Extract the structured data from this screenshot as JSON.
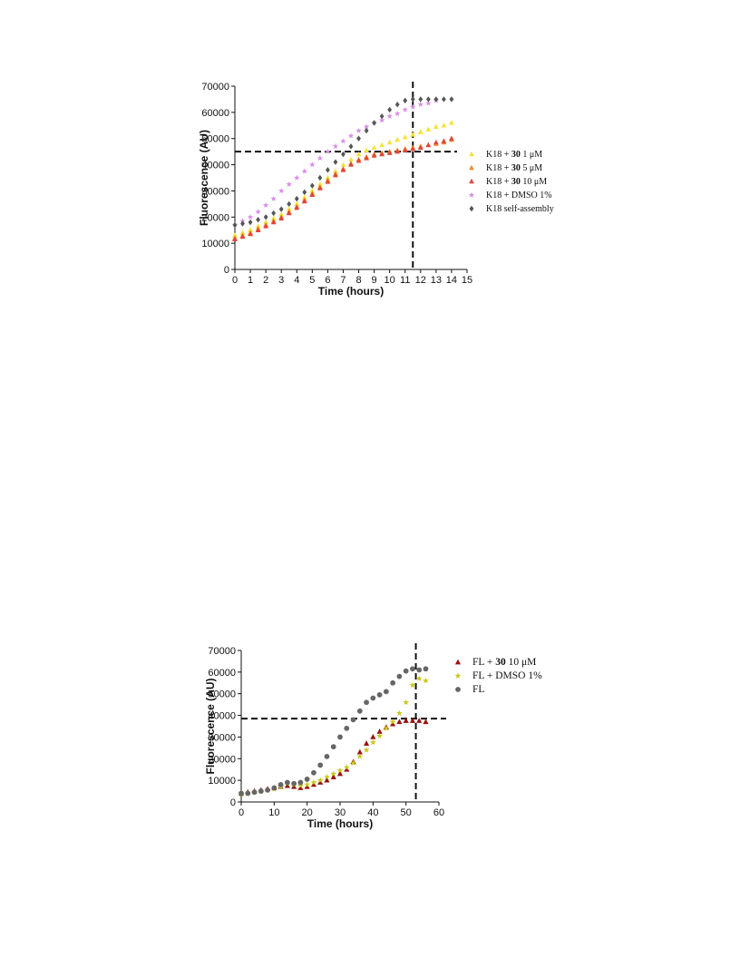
{
  "chart_data": [
    {
      "type": "scatter",
      "xlabel": "Time (hours)",
      "ylabel": "Fluorescence (AU)",
      "xlim": [
        0,
        15
      ],
      "ylim": [
        0,
        70000
      ],
      "xticks": [
        "0",
        "1",
        "2",
        "3",
        "4",
        "5",
        "6",
        "7",
        "8",
        "9",
        "10",
        "11",
        "12",
        "13",
        "14",
        "15"
      ],
      "yticks": [
        "0",
        "10000",
        "20000",
        "30000",
        "40000",
        "50000",
        "60000",
        "70000"
      ],
      "grid": false,
      "legend_position": "right",
      "reference_lines": {
        "x": 11.5,
        "y": 45000
      },
      "series": [
        {
          "name_parts": [
            "K18 + ",
            "30",
            " 1 μM"
          ],
          "marker": "triangle",
          "color": "#f2e436",
          "x": [
            0,
            0.5,
            1,
            1.5,
            2,
            2.5,
            3,
            3.5,
            4,
            4.5,
            5,
            5.5,
            6,
            6.5,
            7,
            7.5,
            8,
            8.5,
            9,
            9.5,
            10,
            10.5,
            11,
            11.5,
            12,
            12.5,
            13,
            13.5,
            14
          ],
          "y": [
            13000,
            14000,
            15000,
            16500,
            18000,
            19500,
            21000,
            23000,
            25000,
            27500,
            30000,
            32500,
            35000,
            37500,
            40000,
            42000,
            44000,
            45500,
            46500,
            47500,
            48500,
            49500,
            50500,
            51500,
            52500,
            53500,
            54500,
            55000,
            56000
          ]
        },
        {
          "name_parts": [
            "K18 + ",
            "30",
            " 5 μM"
          ],
          "marker": "triangle",
          "color": "#f28a2e",
          "x": [
            0,
            0.5,
            1,
            1.5,
            2,
            2.5,
            3,
            3.5,
            4,
            4.5,
            5,
            5.5,
            6,
            6.5,
            7,
            7.5,
            8,
            8.5,
            9,
            9.5,
            10,
            10.5,
            11,
            11.5,
            12,
            12.5,
            13,
            13.5,
            14
          ],
          "y": [
            12000,
            13000,
            14000,
            15500,
            17000,
            18500,
            20000,
            22000,
            24000,
            26500,
            29000,
            31500,
            34000,
            36500,
            38500,
            40500,
            42000,
            43000,
            44000,
            44500,
            45000,
            45500,
            46000,
            46500,
            47000,
            47500,
            48000,
            48500,
            49500
          ]
        },
        {
          "name_parts": [
            "K18 + ",
            "30",
            " 10 μM"
          ],
          "marker": "triangle",
          "color": "#e0453c",
          "x": [
            0,
            0.5,
            1,
            1.5,
            2,
            2.5,
            3,
            3.5,
            4,
            4.5,
            5,
            5.5,
            6,
            6.5,
            7,
            7.5,
            8,
            8.5,
            9,
            9.5,
            10,
            10.5,
            11,
            11.5,
            12,
            12.5,
            13,
            13.5,
            14
          ],
          "y": [
            11500,
            12500,
            13500,
            15000,
            16500,
            18000,
            19500,
            21500,
            23500,
            26000,
            28500,
            31000,
            33500,
            36000,
            38000,
            40000,
            41500,
            42500,
            43500,
            44000,
            44500,
            45000,
            45500,
            46000,
            46500,
            47500,
            48500,
            49000,
            50000
          ]
        },
        {
          "name_parts": [
            "K18 + DMSO 1%"
          ],
          "marker": "star",
          "color": "#d98ee8",
          "x": [
            0,
            0.5,
            1,
            1.5,
            2,
            2.5,
            3,
            3.5,
            4,
            4.5,
            5,
            5.5,
            6,
            6.5,
            7,
            7.5,
            8,
            8.5,
            9,
            9.5,
            10,
            10.5,
            11,
            11.5,
            12,
            12.5,
            13
          ],
          "y": [
            17000,
            18500,
            20000,
            22000,
            24500,
            27000,
            30000,
            32500,
            35000,
            37500,
            40000,
            42500,
            45000,
            47000,
            49000,
            51000,
            53000,
            54500,
            56000,
            57000,
            58500,
            59500,
            61000,
            62000,
            63000,
            63500,
            64500
          ]
        },
        {
          "name_parts": [
            "K18 self-assembly"
          ],
          "marker": "diamond",
          "color": "#555555",
          "x": [
            0,
            0.5,
            1,
            1.5,
            2,
            2.5,
            3,
            3.5,
            4,
            4.5,
            5,
            5.5,
            6,
            6.5,
            7,
            7.5,
            8,
            8.5,
            9,
            9.5,
            10,
            10.5,
            11,
            11.5,
            12,
            12.5,
            13,
            13.5,
            14
          ],
          "y": [
            17000,
            17500,
            18000,
            19000,
            20000,
            21500,
            23000,
            25000,
            27000,
            29500,
            32000,
            35000,
            38000,
            41000,
            44000,
            47000,
            50000,
            53000,
            56000,
            58500,
            61000,
            63000,
            64500,
            65000,
            65000,
            65000,
            65000,
            65000,
            65000
          ]
        }
      ]
    },
    {
      "type": "scatter",
      "xlabel": "Time (hours)",
      "ylabel": "Fluorescence (AU)",
      "xlim": [
        0,
        60
      ],
      "ylim": [
        0,
        70000
      ],
      "xticks": [
        "0",
        "10",
        "20",
        "30",
        "40",
        "50",
        "60"
      ],
      "yticks": [
        "0",
        "10000",
        "20000",
        "30000",
        "40000",
        "50000",
        "60000",
        "70000"
      ],
      "grid": false,
      "legend_position": "top-right",
      "reference_lines": {
        "x": 53,
        "y": 38500
      },
      "series": [
        {
          "name_parts": [
            "FL + ",
            "30",
            " 10 μM"
          ],
          "marker": "triangle",
          "color": "#9b1010",
          "x": [
            0,
            2,
            4,
            6,
            8,
            10,
            12,
            14,
            16,
            18,
            20,
            22,
            24,
            26,
            28,
            30,
            32,
            34,
            36,
            38,
            40,
            42,
            44,
            46,
            48,
            50,
            52,
            54,
            56
          ],
          "y": [
            4000,
            4500,
            5000,
            5500,
            6000,
            6500,
            7000,
            7500,
            7000,
            6500,
            7000,
            8000,
            9000,
            10000,
            11500,
            13000,
            15000,
            18500,
            23000,
            27000,
            30000,
            32500,
            34500,
            36000,
            37000,
            37500,
            37500,
            37500,
            37000
          ]
        },
        {
          "name_parts": [
            "FL + DMSO 1%"
          ],
          "marker": "star",
          "color": "#c8c81e",
          "x": [
            0,
            2,
            4,
            6,
            8,
            10,
            12,
            14,
            16,
            18,
            20,
            22,
            24,
            26,
            28,
            30,
            32,
            34,
            36,
            38,
            40,
            42,
            44,
            46,
            48,
            50,
            52,
            54,
            56
          ],
          "y": [
            3500,
            4000,
            4500,
            5000,
            5500,
            6000,
            7000,
            8500,
            8000,
            7500,
            8000,
            9000,
            10000,
            11500,
            13000,
            14500,
            16000,
            18000,
            21000,
            24000,
            27500,
            30500,
            34000,
            37000,
            41000,
            46000,
            54000,
            57000,
            56000
          ]
        },
        {
          "name_parts": [
            "FL"
          ],
          "marker": "circle",
          "color": "#666666",
          "x": [
            0,
            2,
            4,
            6,
            8,
            10,
            12,
            14,
            16,
            18,
            20,
            22,
            24,
            26,
            28,
            30,
            32,
            34,
            36,
            38,
            40,
            42,
            44,
            46,
            48,
            50,
            52,
            54,
            56
          ],
          "y": [
            4000,
            4000,
            4500,
            5000,
            5500,
            6500,
            8000,
            9000,
            8500,
            9000,
            10500,
            13500,
            17000,
            21000,
            25500,
            30000,
            34000,
            38000,
            42000,
            46000,
            48000,
            49500,
            51000,
            55000,
            58000,
            60500,
            61500,
            61000,
            61500
          ]
        }
      ]
    }
  ]
}
